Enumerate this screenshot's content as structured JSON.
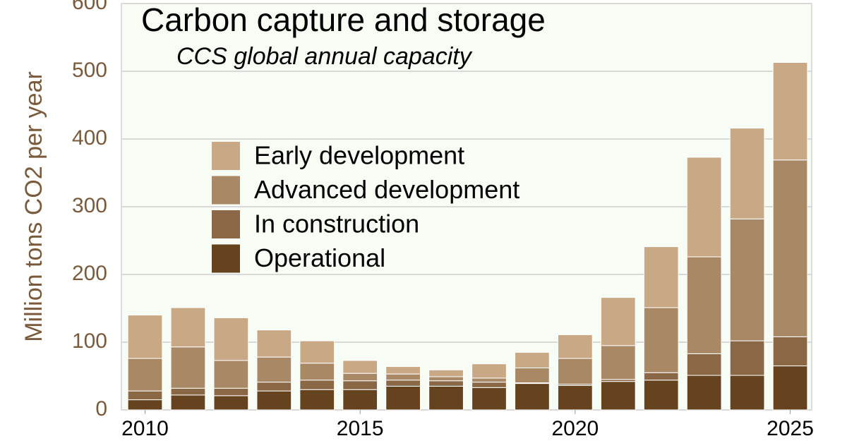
{
  "chart_data": {
    "type": "stacked-bar",
    "title": "Carbon capture and storage",
    "subtitle": "CCS global annual capacity",
    "y_label": "Million tons CO2 per year",
    "x": [
      2010,
      2011,
      2012,
      2013,
      2014,
      2015,
      2016,
      2017,
      2018,
      2019,
      2020,
      2021,
      2022,
      2023,
      2024,
      2025
    ],
    "xlim": [
      2009.45,
      2025.5
    ],
    "xticks": [
      2010,
      2015,
      2020,
      2025
    ],
    "ylim": [
      0,
      600
    ],
    "yticks": [
      0,
      100,
      200,
      300,
      400,
      500,
      600
    ],
    "grid": true,
    "series": [
      {
        "name": "Operational",
        "color": "#66431f",
        "values": [
          15,
          22,
          21,
          28,
          30,
          30,
          35,
          35,
          33,
          39,
          36,
          42,
          44,
          51,
          51,
          65
        ]
      },
      {
        "name": "In construction",
        "color": "#8a6745",
        "values": [
          13,
          10,
          11,
          13,
          14,
          13,
          9,
          8,
          8,
          1,
          2,
          3,
          11,
          32,
          51,
          43
        ]
      },
      {
        "name": "Advanced development",
        "color": "#a88865",
        "values": [
          48,
          61,
          41,
          37,
          25,
          11,
          9,
          6,
          6,
          22,
          38,
          50,
          96,
          143,
          180,
          261
        ]
      },
      {
        "name": "Early development",
        "color": "#c9a885",
        "values": [
          64,
          58,
          63,
          40,
          33,
          19,
          11,
          10,
          21,
          23,
          35,
          71,
          90,
          147,
          134,
          144
        ]
      }
    ]
  }
}
